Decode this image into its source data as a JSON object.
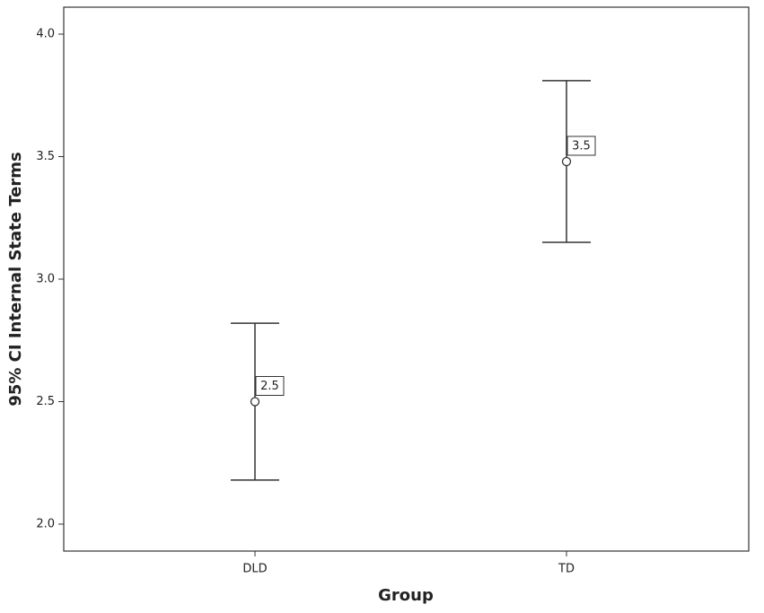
{
  "chart_data": {
    "type": "errorbar",
    "x_label": "Group",
    "y_label": "95% CI Internal State Terms",
    "categories": [
      "DLD",
      "TD"
    ],
    "series": [
      {
        "values": [
          2.5,
          3.48
        ],
        "value_labels": [
          "2.5",
          "3.5"
        ],
        "lower": [
          2.18,
          3.15
        ],
        "upper": [
          2.82,
          3.81
        ],
        "color": "#333333"
      }
    ],
    "ylim": [
      1.89,
      4.11
    ],
    "yticks": [
      {
        "value": 2,
        "label": "2.0"
      },
      {
        "value": 2.5,
        "label": "2.5"
      },
      {
        "value": 3,
        "label": "3.0"
      },
      {
        "value": 3.5,
        "label": "3.5"
      },
      {
        "value": 4,
        "label": "4.0"
      }
    ]
  }
}
